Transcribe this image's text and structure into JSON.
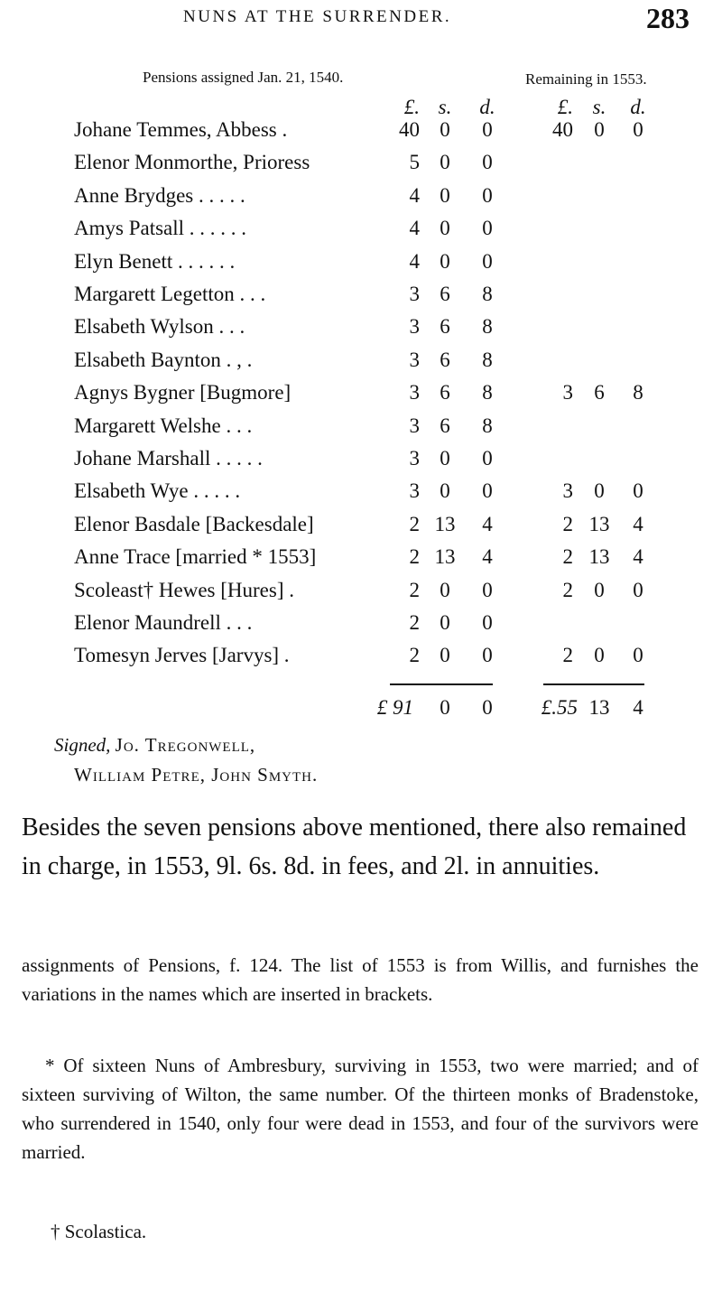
{
  "header": {
    "running_title": "NUNS AT THE SURRENDER.",
    "page_number": "283"
  },
  "table": {
    "heading_1540": "Pensions assigned Jan. 21, 1540.",
    "heading_1553": "Remaining in 1553.",
    "units": [
      "£.",
      "s.",
      "d."
    ],
    "rows": [
      {
        "name": "Johane Temmes, Abbess  .",
        "l": "40",
        "s": "0",
        "d": "0",
        "rl": "40",
        "rs": "0",
        "rd": "0"
      },
      {
        "name": "Elenor Monmorthe, Prioress",
        "l": "5",
        "s": "0",
        "d": "0"
      },
      {
        "name": "Anne Brydges  . . . . .",
        "l": "4",
        "s": "0",
        "d": "0"
      },
      {
        "name": "Amys Patsall . . . . . .",
        "l": "4",
        "s": "0",
        "d": "0"
      },
      {
        "name": "Elyn Benett  . . . . . .",
        "l": "4",
        "s": "0",
        "d": "0"
      },
      {
        "name": "Margarett Legetton . . .",
        "l": "3",
        "s": "6",
        "d": "8"
      },
      {
        "name": "Elsabeth Wylson   . . .",
        "l": "3",
        "s": "6",
        "d": "8"
      },
      {
        "name": "Elsabeth Baynton  . , .",
        "l": "3",
        "s": "6",
        "d": "8"
      },
      {
        "name": "Agnys Bygner [Bugmore]",
        "l": "3",
        "s": "6",
        "d": "8",
        "rl": "3",
        "rs": "6",
        "rd": "8"
      },
      {
        "name": "Margarett Welshe   . . .",
        "l": "3",
        "s": "6",
        "d": "8"
      },
      {
        "name": "Johane Marshall . . . . .",
        "l": "3",
        "s": "0",
        "d": "0"
      },
      {
        "name": "Elsabeth Wye   . . . . .",
        "l": "3",
        "s": "0",
        "d": "0",
        "rl": "3",
        "rs": "0",
        "rd": "0"
      },
      {
        "name": "Elenor Basdale [Backesdale]",
        "l": "2",
        "s": "13",
        "d": "4",
        "rl": "2",
        "rs": "13",
        "rd": "4"
      },
      {
        "name": "Anne Trace [married * 1553]",
        "l": "2",
        "s": "13",
        "d": "4",
        "rl": "2",
        "rs": "13",
        "rd": "4"
      },
      {
        "name": "Scoleast† Hewes [Hures] .",
        "l": "2",
        "s": "0",
        "d": "0",
        "rl": "2",
        "rs": "0",
        "rd": "0"
      },
      {
        "name": "Elenor Maundrell   . . .",
        "l": "2",
        "s": "0",
        "d": "0"
      },
      {
        "name": "Tomesyn Jerves [Jarvys] .",
        "l": "2",
        "s": "0",
        "d": "0",
        "rl": "2",
        "rs": "0",
        "rd": "0"
      }
    ],
    "total_1540": {
      "l": "£ 91",
      "s": "0",
      "d": "0"
    },
    "total_1553": {
      "l": "£.55",
      "s": "13",
      "d": "4"
    }
  },
  "signatures": {
    "signed_label": "Signed,",
    "line1": "Jo. Tregonwell,",
    "line2": "William Petre, John Smyth."
  },
  "body_text": "Besides the seven pensions above mentioned, there also remained in charge, in 1553, 9l. 6s. 8d. in fees, and 2l. in annuities.",
  "footnotes": [
    "assignments of Pensions, f. 124. The list of 1553 is from Willis, and furnishes the variations in the names which are inserted in brackets.",
    "* Of sixteen Nuns of Ambresbury, surviving in 1553, two were married; and of sixteen surviving of Wilton, the same number. Of the thirteen monks of Bradenstoke, who surrendered in 1540, only four were dead in 1553, and four of the survivors were married.",
    "† Scolastica."
  ]
}
